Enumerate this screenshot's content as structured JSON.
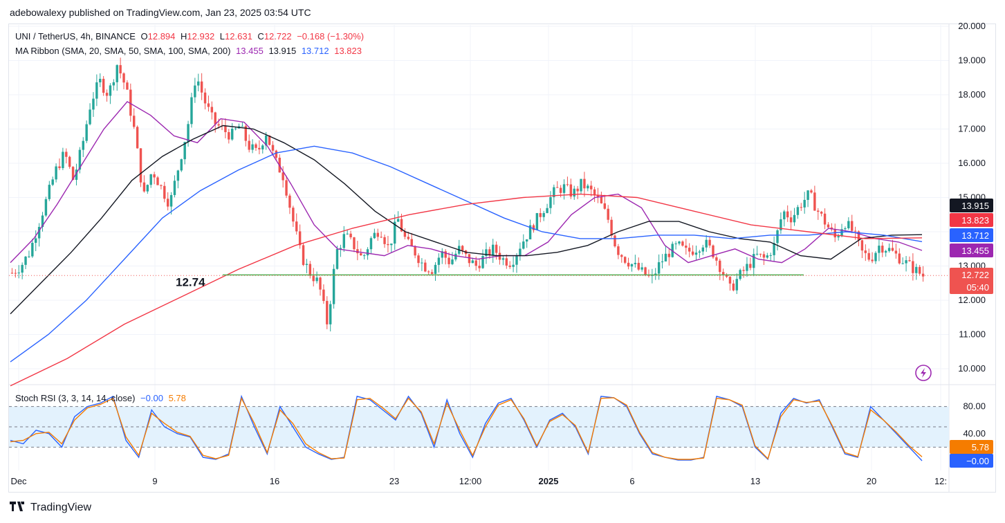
{
  "publisher_line": "adebowalexy published on TradingView.com, Jan 23, 2025 03:54 UTC",
  "footer": {
    "brand": "TradingView",
    "logo_icon": "tradingview-logo-icon"
  },
  "legend": {
    "symbol": "UNI / TetherUS, 4h, BINANCE",
    "ohlc": {
      "o_label": "O",
      "o": "12.894",
      "h_label": "H",
      "h": "12.932",
      "l_label": "L",
      "l": "12.631",
      "c_label": "C",
      "c": "12.722",
      "change": "−0.168 (−1.30%)"
    },
    "ma_ribbon_label": "MA Ribbon (SMA, 20, SMA, 50, SMA, 100, SMA, 200)",
    "ma_values": [
      "13.455",
      "13.915",
      "13.712",
      "13.823"
    ],
    "stoch_label": "Stoch RSI (3, 3, 14, 14, close)",
    "stoch_values": [
      "−0.00",
      "5.78"
    ]
  },
  "colors": {
    "up": "#26a69a",
    "down": "#ef5350",
    "sma20": "#9c27b0",
    "sma50": "#131722",
    "sma100": "#2962ff",
    "sma200": "#f23645",
    "support": "#4caf50",
    "k_line": "#2962ff",
    "d_line": "#f57c00",
    "band_fill": "#e3f2fd",
    "grid": "#f0f3fa",
    "axis_text": "#131722"
  },
  "chart_data": [
    {
      "type": "candlestick",
      "title": "UNI / TetherUS, 4h, BINANCE",
      "ylim": [
        9.5,
        20.0
      ],
      "y_ticks": [
        "20.000",
        "19.000",
        "18.000",
        "17.000",
        "16.000",
        "15.000",
        "14.000",
        "13.000",
        "12.000",
        "11.000",
        "10.000"
      ],
      "x_ticks": [
        "Dec",
        "9",
        "16",
        "23",
        "12:00",
        "2025",
        "6",
        "13",
        "20",
        "12:"
      ],
      "support_level": {
        "value": 12.74,
        "label": "12.74"
      },
      "last_price": {
        "value": "12.722",
        "countdown": "05:40"
      },
      "price_scale_labels": [
        {
          "value": "13.915",
          "color": "#131722"
        },
        {
          "value": "13.823",
          "color": "#f23645"
        },
        {
          "value": "13.712",
          "color": "#2962ff"
        },
        {
          "value": "13.455",
          "color": "#9c27b0"
        },
        {
          "value": "12.722",
          "color": "#ef5350"
        }
      ],
      "close_path": [
        12.8,
        13.0,
        13.4,
        14.2,
        15.0,
        15.8,
        16.3,
        15.5,
        16.5,
        17.8,
        18.4,
        18.0,
        18.9,
        18.2,
        16.9,
        15.0,
        15.8,
        15.3,
        14.8,
        15.9,
        17.0,
        18.6,
        17.8,
        17.2,
        17.0,
        16.8,
        17.1,
        16.5,
        16.3,
        16.9,
        16.1,
        15.6,
        14.4,
        13.3,
        12.8,
        12.5,
        11.3,
        13.4,
        13.9,
        13.6,
        13.2,
        13.8,
        14.1,
        13.5,
        14.4,
        13.7,
        13.4,
        13.0,
        12.9,
        13.4,
        13.1,
        13.5,
        13.2,
        13.0,
        13.3,
        13.5,
        13.2,
        13.1,
        13.6,
        14.0,
        14.4,
        14.8,
        15.2,
        15.3,
        15.1,
        15.4,
        15.2,
        14.9,
        14.4,
        13.5,
        13.2,
        13.0,
        12.8,
        12.6,
        13.1,
        13.4,
        13.6,
        13.4,
        13.5,
        13.7,
        13.4,
        12.9,
        12.3,
        12.7,
        13.0,
        13.3,
        13.2,
        13.6,
        14.6,
        14.4,
        14.8,
        15.1,
        14.6,
        14.2,
        13.8,
        14.3,
        14.0,
        13.4,
        13.2,
        13.6,
        13.5,
        13.3,
        13.1,
        12.9,
        12.72
      ],
      "series": [
        {
          "name": "SMA 20",
          "color": "#9c27b0",
          "values": [
            13.1,
            13.8,
            14.8,
            15.9,
            17.0,
            17.8,
            17.4,
            16.8,
            16.6,
            17.3,
            17.2,
            16.5,
            15.4,
            14.2,
            13.5,
            13.4,
            13.3,
            13.6,
            13.5,
            13.3,
            13.2,
            13.3,
            13.3,
            13.7,
            14.5,
            15.0,
            15.1,
            14.7,
            13.6,
            13.1,
            13.3,
            13.5,
            13.2,
            13.1,
            13.5,
            14.1,
            14.0,
            13.8,
            13.7,
            13.455
          ]
        },
        {
          "name": "SMA 50",
          "color": "#131722",
          "values": [
            11.6,
            12.5,
            13.4,
            14.4,
            15.5,
            16.2,
            16.7,
            17.1,
            17.0,
            16.6,
            16.1,
            15.4,
            14.6,
            14.0,
            13.7,
            13.4,
            13.3,
            13.3,
            13.4,
            13.6,
            14.0,
            14.3,
            14.3,
            14.0,
            13.8,
            13.7,
            13.3,
            13.2,
            13.8,
            13.9,
            13.915
          ]
        },
        {
          "name": "SMA 100",
          "color": "#2962ff",
          "values": [
            10.2,
            11.0,
            12.0,
            13.2,
            14.4,
            15.2,
            15.8,
            16.3,
            16.5,
            16.3,
            15.9,
            15.4,
            14.9,
            14.4,
            14.0,
            13.8,
            13.8,
            13.9,
            13.9,
            13.8,
            13.9,
            13.9,
            14.0,
            13.9,
            13.712
          ]
        },
        {
          "name": "SMA 200",
          "color": "#f23645",
          "values": [
            9.5,
            10.3,
            11.3,
            12.1,
            12.9,
            13.6,
            14.1,
            14.5,
            14.8,
            15.0,
            15.1,
            15.0,
            14.6,
            14.2,
            14.0,
            13.8,
            13.823
          ]
        }
      ]
    },
    {
      "type": "line",
      "title": "Stoch RSI (3, 3, 14, 14, close)",
      "ylim": [
        0,
        100
      ],
      "y_ticks": [
        "80.00",
        "40.00"
      ],
      "bands": [
        80,
        50,
        20
      ],
      "series": [
        {
          "name": "K",
          "color": "#2962ff",
          "values": [
            30,
            25,
            45,
            40,
            20,
            65,
            80,
            85,
            95,
            30,
            5,
            75,
            50,
            40,
            35,
            5,
            2,
            10,
            95,
            50,
            10,
            80,
            50,
            20,
            10,
            2,
            5,
            95,
            90,
            75,
            60,
            95,
            70,
            20,
            90,
            40,
            5,
            55,
            85,
            92,
            60,
            20,
            60,
            70,
            50,
            10,
            95,
            93,
            80,
            40,
            10,
            5,
            1,
            1,
            5,
            95,
            90,
            80,
            20,
            2,
            70,
            92,
            85,
            90,
            50,
            10,
            5,
            80,
            60,
            40,
            20,
            0
          ]
        },
        {
          "name": "D",
          "color": "#f57c00",
          "values": [
            28,
            30,
            40,
            42,
            25,
            60,
            78,
            83,
            92,
            35,
            8,
            70,
            55,
            42,
            36,
            8,
            3,
            8,
            92,
            55,
            12,
            75,
            55,
            25,
            12,
            3,
            4,
            90,
            92,
            78,
            62,
            92,
            72,
            25,
            85,
            45,
            8,
            50,
            82,
            90,
            62,
            22,
            58,
            68,
            52,
            12,
            92,
            93,
            82,
            42,
            12,
            5,
            2,
            2,
            4,
            92,
            90,
            82,
            22,
            3,
            65,
            90,
            86,
            88,
            52,
            12,
            6,
            75,
            60,
            42,
            22,
            5.78
          ]
        }
      ]
    }
  ]
}
